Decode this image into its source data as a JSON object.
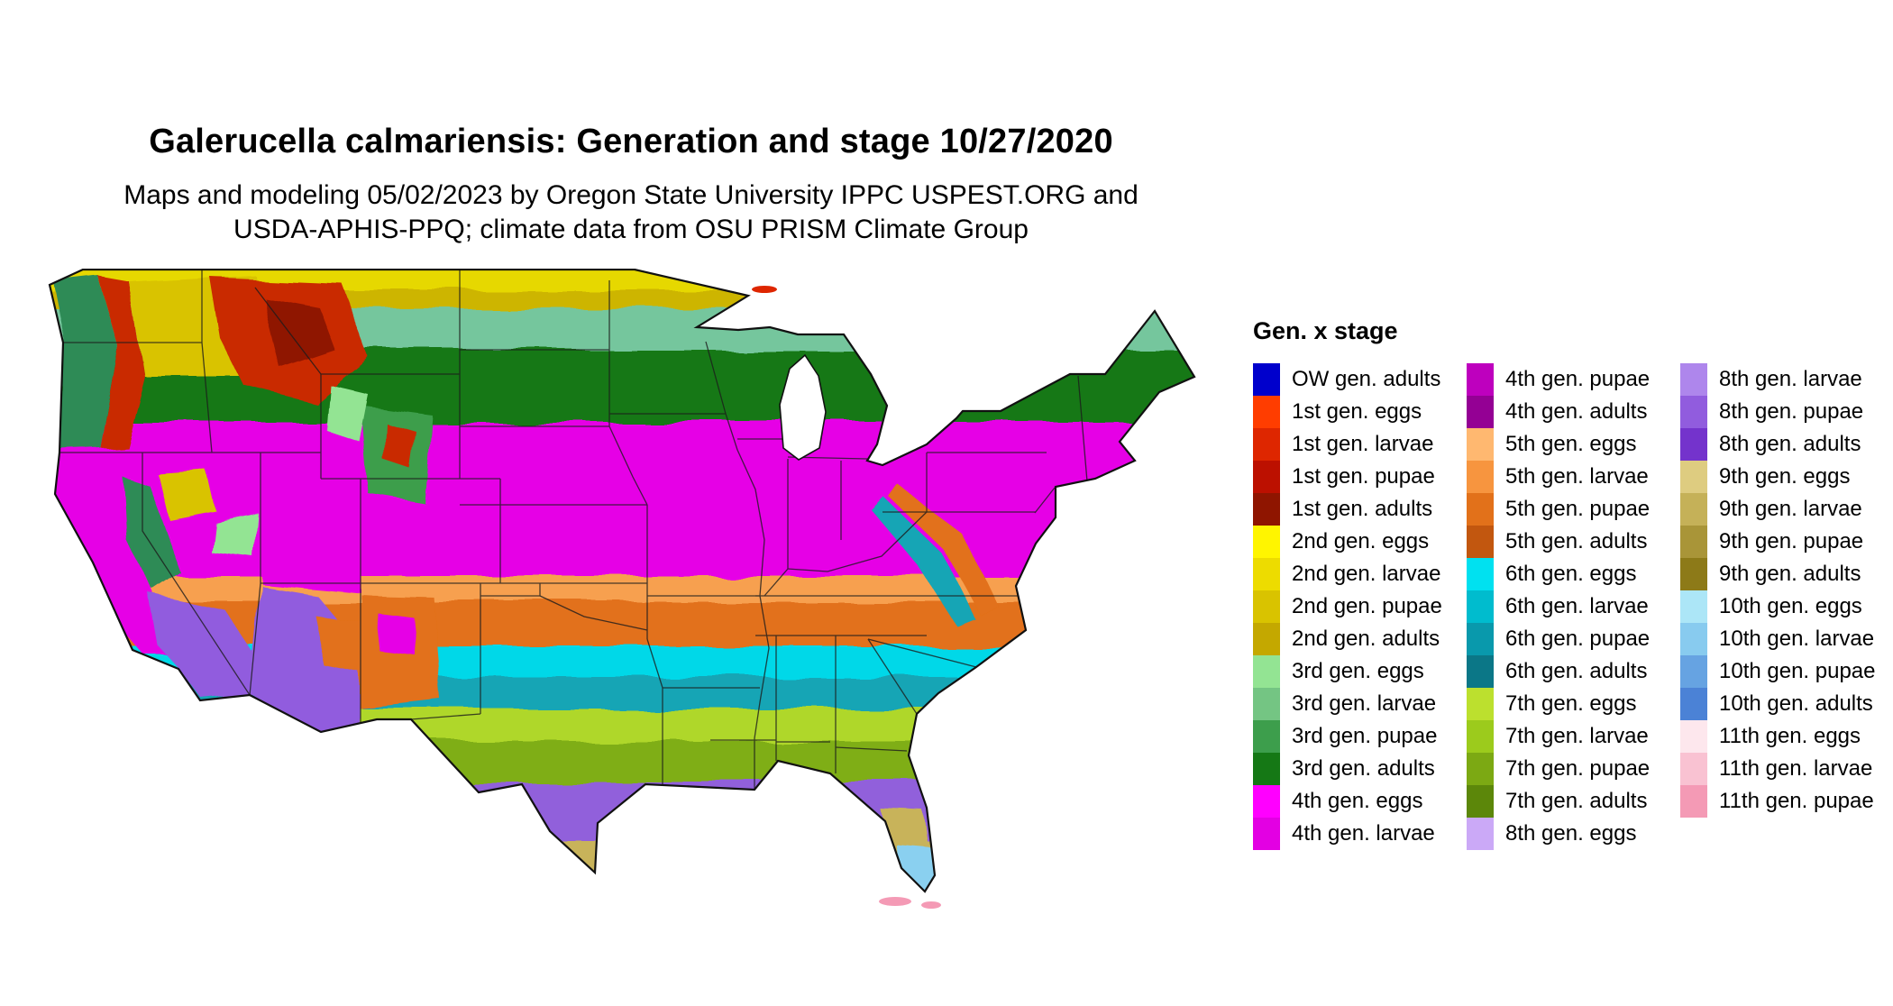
{
  "header": {
    "title": "Galerucella calmariensis: Generation and stage 10/27/2020",
    "subtitle_line1": "Maps and modeling 05/02/2023 by Oregon State University IPPC USPEST.ORG and",
    "subtitle_line2": "USDA-APHIS-PPQ; climate data from OSU PRISM Climate Group"
  },
  "legend": {
    "title": "Gen. x stage",
    "columns": [
      [
        {
          "label": "OW gen. adults",
          "color": "#0000CC"
        },
        {
          "label": "1st gen. eggs",
          "color": "#FF3D00"
        },
        {
          "label": "1st gen. larvae",
          "color": "#DE2600"
        },
        {
          "label": "1st gen. pupae",
          "color": "#BC1000"
        },
        {
          "label": "1st gen. adults",
          "color": "#8F1500"
        },
        {
          "label": "2nd gen. eggs",
          "color": "#FFF500"
        },
        {
          "label": "2nd gen. larvae",
          "color": "#EDDC00"
        },
        {
          "label": "2nd gen. pupae",
          "color": "#D9C300"
        },
        {
          "label": "2nd gen. adults",
          "color": "#C4A800"
        },
        {
          "label": "3rd gen. eggs",
          "color": "#93E493"
        },
        {
          "label": "3rd gen. larvae",
          "color": "#74C583"
        },
        {
          "label": "3rd gen. pupae",
          "color": "#3D9E4C"
        },
        {
          "label": "3rd gen. adults",
          "color": "#157815"
        },
        {
          "label": "4th gen. eggs",
          "color": "#FF00FF"
        },
        {
          "label": "4th gen. larvae",
          "color": "#E300E3"
        }
      ],
      [
        {
          "label": "4th gen. pupae",
          "color": "#BE00BE"
        },
        {
          "label": "4th gen. adults",
          "color": "#940094"
        },
        {
          "label": "5th gen. eggs",
          "color": "#FFB870"
        },
        {
          "label": "5th gen. larvae",
          "color": "#F7953F"
        },
        {
          "label": "5th gen. pupae",
          "color": "#E2711A"
        },
        {
          "label": "5th gen. adults",
          "color": "#C2570F"
        },
        {
          "label": "6th gen. eggs",
          "color": "#00E1F0"
        },
        {
          "label": "6th gen. larvae",
          "color": "#00BCCE"
        },
        {
          "label": "6th gen. pupae",
          "color": "#0999AC"
        },
        {
          "label": "6th gen. adults",
          "color": "#0B7787"
        },
        {
          "label": "7th gen. eggs",
          "color": "#BCE02E"
        },
        {
          "label": "7th gen. larvae",
          "color": "#9CCB1C"
        },
        {
          "label": "7th gen. pupae",
          "color": "#7CA913"
        },
        {
          "label": "7th gen. adults",
          "color": "#5C870A"
        },
        {
          "label": "8th gen. eggs",
          "color": "#CBA9F7"
        }
      ],
      [
        {
          "label": "8th gen. larvae",
          "color": "#AE86EC"
        },
        {
          "label": "8th gen. pupae",
          "color": "#915CDE"
        },
        {
          "label": "8th gen. adults",
          "color": "#7433CC"
        },
        {
          "label": "9th gen. eggs",
          "color": "#DECC80"
        },
        {
          "label": "9th gen. larvae",
          "color": "#C5B158"
        },
        {
          "label": "9th gen. pupae",
          "color": "#A99538"
        },
        {
          "label": "9th gen. adults",
          "color": "#8D7A18"
        },
        {
          "label": "10th gen. eggs",
          "color": "#ACE6F7"
        },
        {
          "label": "10th gen. larvae",
          "color": "#88CBEF"
        },
        {
          "label": "10th gen. pupae",
          "color": "#66A3E2"
        },
        {
          "label": "10th gen. adults",
          "color": "#4B82D6"
        },
        {
          "label": "11th gen. eggs",
          "color": "#FDE7ED"
        },
        {
          "label": "11th gen. larvae",
          "color": "#F9C2D2"
        },
        {
          "label": "11th gen. pupae",
          "color": "#F49AB5"
        }
      ]
    ]
  },
  "map": {
    "label": "Contiguous United States map shaded by generation and stage",
    "outline_color": "#111111",
    "bands": [
      {
        "name": "north-2nd-gen-eggs",
        "color": "#E6D800"
      },
      {
        "name": "north-2nd-gen-pupae",
        "color": "#CDB500"
      },
      {
        "name": "north-3rd-gen-larvae",
        "color": "#74C69D"
      },
      {
        "name": "north-3rd-gen-adults",
        "color": "#157815"
      },
      {
        "name": "mid-4th-gen",
        "color": "#E600E6"
      },
      {
        "name": "mid-5th-gen-eggs",
        "color": "#F7A050"
      },
      {
        "name": "mid-5th-gen-pupae",
        "color": "#E2711A"
      },
      {
        "name": "south-6th-gen-eggs",
        "color": "#00D8E8"
      },
      {
        "name": "south-6th-gen-pupae",
        "color": "#12A5B5"
      },
      {
        "name": "south-7th-gen-eggs",
        "color": "#AFD72B"
      },
      {
        "name": "south-7th-gen-pupae",
        "color": "#7FAE14"
      },
      {
        "name": "deep-south-8th-gen",
        "color": "#9161DB"
      },
      {
        "name": "deep-south-9th-gen",
        "color": "#C8B35A"
      },
      {
        "name": "deep-south-10th-gen",
        "color": "#8AD0F0"
      }
    ],
    "patches": [
      {
        "name": "pnw-coast-green",
        "color": "#2E8B57"
      },
      {
        "name": "cascades-red",
        "color": "#C92A00"
      },
      {
        "name": "inland-northwest-gold",
        "color": "#D9C300"
      },
      {
        "name": "northern-rockies-red",
        "color": "#C92A00"
      },
      {
        "name": "northern-rockies-dark-red",
        "color": "#8F1500"
      },
      {
        "name": "great-basin-magenta",
        "color": "#E600E6"
      },
      {
        "name": "great-basin-gold",
        "color": "#D9C300"
      },
      {
        "name": "great-basin-green",
        "color": "#93E493"
      },
      {
        "name": "sierra-green",
        "color": "#2E8B57"
      },
      {
        "name": "central-valley-magenta",
        "color": "#E600E6"
      },
      {
        "name": "socal-desert-purple",
        "color": "#915CDE"
      },
      {
        "name": "arizona-purple",
        "color": "#915CDE"
      },
      {
        "name": "arizona-orange",
        "color": "#E2711A"
      },
      {
        "name": "four-corners-magenta",
        "color": "#E600E6"
      },
      {
        "name": "new-mexico-orange",
        "color": "#E2711A"
      },
      {
        "name": "new-mexico-magenta",
        "color": "#E600E6"
      },
      {
        "name": "colorado-rockies-green",
        "color": "#3D9E4C"
      },
      {
        "name": "colorado-red",
        "color": "#C92A00"
      },
      {
        "name": "wyoming-green",
        "color": "#93E493"
      },
      {
        "name": "central-florida-khaki",
        "color": "#C8B35A"
      },
      {
        "name": "south-florida-light-blue",
        "color": "#8AD0F0"
      },
      {
        "name": "florida-keys-pink",
        "color": "#F49AB5"
      },
      {
        "name": "isle-royale-red",
        "color": "#DE2600"
      },
      {
        "name": "appalachian-orange",
        "color": "#E2711A"
      },
      {
        "name": "appalachian-teal",
        "color": "#12A5B5"
      }
    ]
  }
}
